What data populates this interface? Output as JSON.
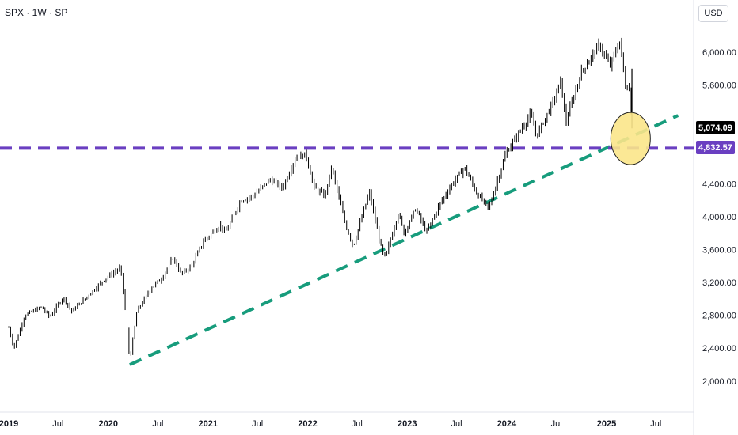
{
  "header": {
    "symbol_label": "SPX · 1W · SP",
    "currency": "USD"
  },
  "chart_data": {
    "type": "line",
    "title": "SPX · 1W · SP",
    "y_axis": {
      "ticks": [
        2000,
        2400,
        2800,
        3200,
        3600,
        4000,
        4400,
        5600,
        6000
      ],
      "tick_labels": [
        "2,000.00",
        "2,400.00",
        "2,800.00",
        "3,200.00",
        "3,600.00",
        "4,000.00",
        "4,400.00",
        "5,600.00",
        "6,000.00"
      ],
      "range": [
        1800,
        6500
      ]
    },
    "x_axis": {
      "ticks": [
        "2019",
        "Jul",
        "2020",
        "Jul",
        "2021",
        "Jul",
        "2022",
        "Jul",
        "2023",
        "Jul",
        "2024",
        "Jul",
        "2025",
        "Jul"
      ],
      "year_ticks": [
        "2019",
        "2020",
        "2021",
        "2022",
        "2023",
        "2024",
        "2025"
      ],
      "range": [
        "2019-01-01",
        "2025-09-20"
      ]
    },
    "series": [
      {
        "x": [
          "2019-01-01",
          "2019-01-20",
          "2019-03-01",
          "2019-05-01",
          "2019-06-01",
          "2019-07-20",
          "2019-08-20",
          "2019-10-01",
          "2019-12-15",
          "2020-02-15",
          "2020-03-01",
          "2020-03-20",
          "2020-04-15",
          "2020-06-10",
          "2020-07-15",
          "2020-08-25",
          "2020-09-25",
          "2020-11-01",
          "2020-12-15",
          "2021-02-15",
          "2021-03-05",
          "2021-05-01",
          "2021-06-15",
          "2021-08-15",
          "2021-10-01",
          "2021-11-15",
          "2021-12-25",
          "2022-01-25",
          "2022-03-05",
          "2022-03-30",
          "2022-05-20",
          "2022-06-17",
          "2022-08-15",
          "2022-09-30",
          "2022-10-12",
          "2022-11-30",
          "2022-12-20",
          "2023-02-01",
          "2023-03-13",
          "2023-04-30",
          "2023-06-15",
          "2023-07-30",
          "2023-09-10",
          "2023-10-27",
          "2023-12-29",
          "2024-03-29",
          "2024-04-19",
          "2024-06-28",
          "2024-07-16",
          "2024-08-05",
          "2024-09-30",
          "2024-12-06",
          "2025-01-13",
          "2025-02-19",
          "2025-03-10",
          "2025-03-28",
          "2025-04-04"
        ],
        "values": [
          2650,
          2400,
          2800,
          2900,
          2780,
          3020,
          2850,
          2980,
          3230,
          3380,
          2950,
          2240,
          2850,
          3150,
          3250,
          3500,
          3300,
          3400,
          3700,
          3900,
          3800,
          4200,
          4250,
          4450,
          4350,
          4700,
          4760,
          4350,
          4250,
          4600,
          3900,
          3640,
          4300,
          3580,
          3500,
          4050,
          3800,
          4100,
          3810,
          4150,
          4400,
          4600,
          4300,
          4100,
          4770,
          5250,
          4980,
          5460,
          5660,
          5150,
          5760,
          6090,
          5830,
          6140,
          5600,
          5550,
          5074
        ]
      }
    ],
    "annotations": [
      {
        "label": "last-price",
        "value": 5074.09,
        "text": "5,074.09",
        "color": "#000000"
      },
      {
        "label": "horizontal-level",
        "value": 4832.57,
        "text": "4,832.57",
        "color": "#6a3fc1"
      },
      {
        "label": "trendline",
        "from": [
          "2020-03-20",
          2200
        ],
        "to": [
          "2025-09-20",
          5230
        ],
        "color": "#179c7c"
      },
      {
        "label": "highlight-circle",
        "at": [
          "2025-03-30",
          4950
        ],
        "color": "#fbe68a"
      }
    ],
    "grid": false,
    "legend": "none"
  }
}
